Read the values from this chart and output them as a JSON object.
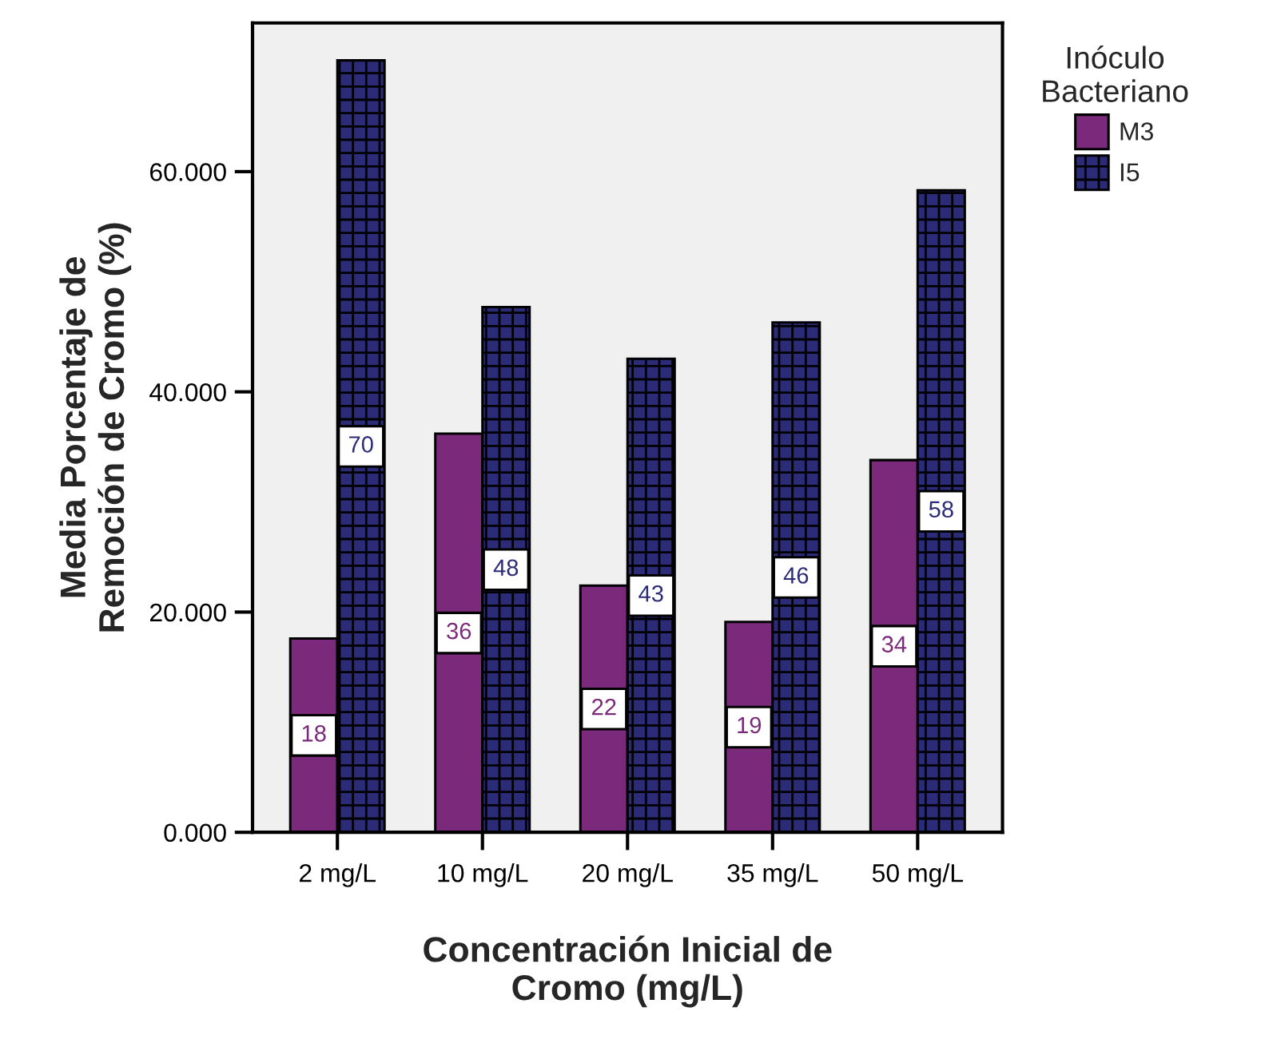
{
  "chart_data": {
    "type": "bar",
    "xlabel": "Concentración Inicial de\nCromo (mg/L)",
    "ylabel": "Media Porcentaje de\nRemoción de Cromo (%)",
    "legend_title": "Inóculo\nBacteriano",
    "categories": [
      "2 mg/L",
      "10 mg/L",
      "20 mg/L",
      "35 mg/L",
      "50 mg/L"
    ],
    "series": [
      {
        "name": "M3",
        "color": "#7b2a7b",
        "values": [
          17.6,
          36.2,
          22.4,
          19.1,
          33.8
        ],
        "value_labels": [
          "18",
          "36",
          "22",
          "19",
          "34"
        ]
      },
      {
        "name": "I5",
        "color": "#2b2b78",
        "values": [
          70.1,
          47.7,
          43.0,
          46.3,
          58.3
        ],
        "value_labels": [
          "70",
          "48",
          "43",
          "46",
          "58"
        ]
      }
    ],
    "ylim": [
      0,
      73.5
    ],
    "yticks": [
      {
        "value": 0,
        "label": "0.000"
      },
      {
        "value": 20,
        "label": "20.000"
      },
      {
        "value": 40,
        "label": "40.000"
      },
      {
        "value": 60,
        "label": "60.000"
      }
    ],
    "legend": "top right"
  }
}
